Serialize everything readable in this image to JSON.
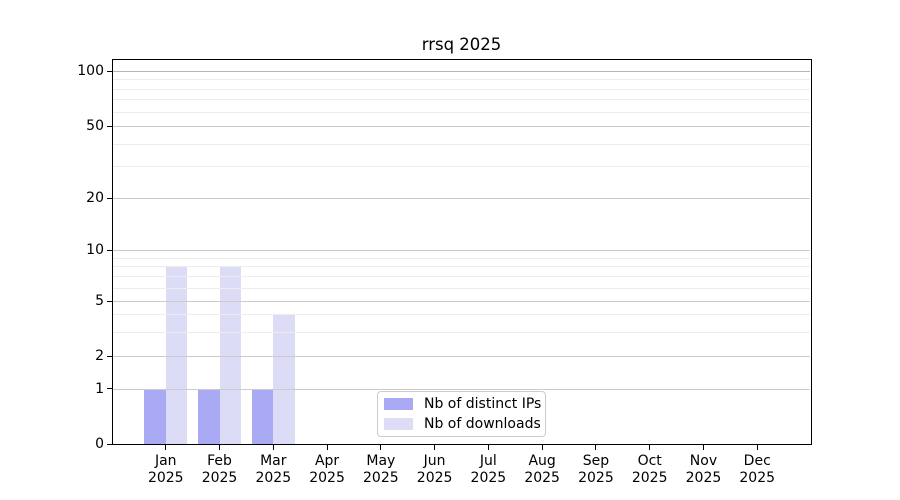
{
  "chart_data": {
    "type": "bar",
    "title": "rrsq 2025",
    "year_label": "2025",
    "months": [
      "Jan",
      "Feb",
      "Mar",
      "Apr",
      "May",
      "Jun",
      "Jul",
      "Aug",
      "Sep",
      "Oct",
      "Nov",
      "Dec"
    ],
    "categories": [
      "Jan 2025",
      "Feb 2025",
      "Mar 2025",
      "Apr 2025",
      "May 2025",
      "Jun 2025",
      "Jul 2025",
      "Aug 2025",
      "Sep 2025",
      "Oct 2025",
      "Nov 2025",
      "Dec 2025"
    ],
    "series": [
      {
        "name": "Nb of distinct IPs",
        "color": "#a9a9f4",
        "values": [
          1,
          1,
          1,
          0,
          0,
          0,
          0,
          0,
          0,
          0,
          0,
          0
        ]
      },
      {
        "name": "Nb of downloads",
        "color": "#dcdcf7",
        "values": [
          8,
          8,
          4,
          0,
          0,
          0,
          0,
          0,
          0,
          0,
          0,
          0
        ]
      }
    ],
    "ylabel": "",
    "xlabel": "",
    "y_scale": "symlog",
    "ylim": [
      0,
      130
    ],
    "y_ticks": [
      0,
      1,
      2,
      5,
      10,
      20,
      50,
      100
    ],
    "grid": {
      "major_values": [
        1,
        2,
        5,
        10,
        20,
        50,
        100
      ],
      "minor_values": [
        3,
        4,
        6,
        7,
        8,
        9,
        30,
        40,
        60,
        70,
        80,
        90
      ],
      "major_color": "#cbcbcb",
      "top_major_color": "#b5b5b5",
      "minor_color": "#ededed"
    },
    "legend": {
      "position": "lower center inside",
      "entries": [
        "Nb of distinct IPs",
        "Nb of downloads"
      ]
    },
    "colors": {
      "distinct_ips": "#a9a9f4",
      "downloads": "#dcdcf7",
      "axis": "#000000",
      "background": "#ffffff"
    }
  }
}
